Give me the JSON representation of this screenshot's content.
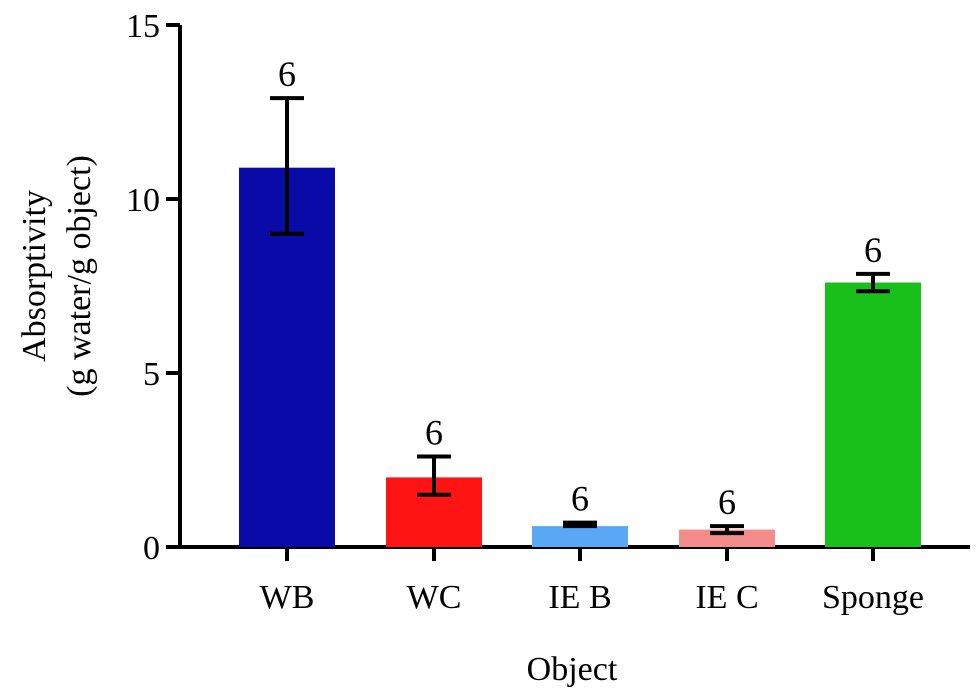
{
  "chart_data": {
    "type": "bar",
    "title": "",
    "xlabel": "Object",
    "ylabel_lines": [
      "Absorptivity",
      "(g water/g object)"
    ],
    "ylim": [
      0,
      15
    ],
    "yticks": [
      0,
      5,
      10,
      15
    ],
    "categories": [
      "WB",
      "WC",
      "IE B",
      "IE C",
      "Sponge"
    ],
    "values": [
      10.9,
      2.0,
      0.6,
      0.5,
      7.6
    ],
    "error_upper": [
      12.9,
      2.6,
      0.7,
      0.6,
      7.85
    ],
    "error_lower": [
      9.0,
      1.5,
      0.6,
      0.4,
      7.35
    ],
    "n_labels": [
      "6",
      "6",
      "6",
      "6",
      "6"
    ],
    "colors": [
      "#0a0aa8",
      "#ff1414",
      "#5aa8f5",
      "#f58c8c",
      "#19c019"
    ],
    "grid": false,
    "legend": "none"
  }
}
